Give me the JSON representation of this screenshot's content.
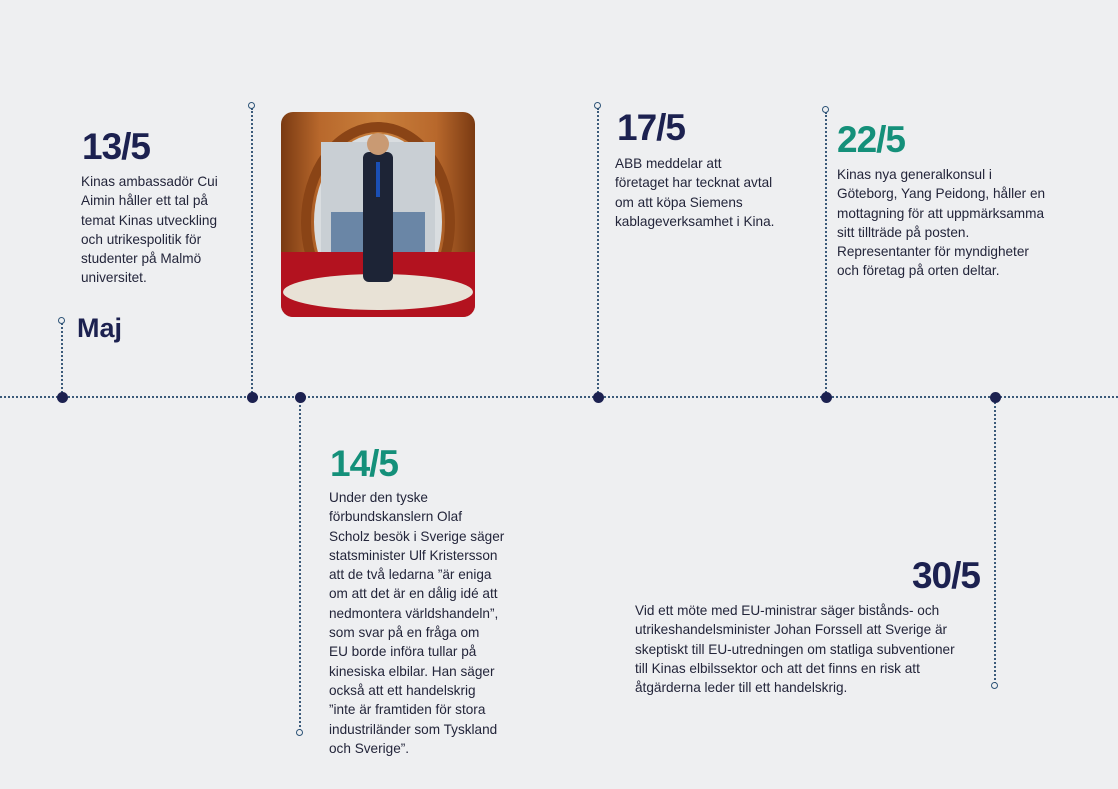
{
  "month": "Maj",
  "events": [
    {
      "date": "13/5",
      "color": "#1c2150",
      "lines": [
        "Kinas ambassadör Cui",
        "Aimin håller ett tal på",
        "temat Kinas utveckling",
        "och utrikespolitik för",
        "studenter på Malmö",
        "universitet."
      ]
    },
    {
      "date": "14/5",
      "color": "#14907a",
      "lines": [
        "Under den tyske",
        "förbundskanslern Olaf",
        "Scholz besök i Sverige säger",
        "statsminister Ulf Kristersson",
        "att de två ledarna ”är eniga",
        "om att det är en dålig idé att",
        "nedmontera världshandeln”,",
        "som svar på en fråga om",
        "EU borde införa tullar på",
        "kinesiska elbilar. Han säger",
        "också att ett handelskrig",
        "”inte är framtiden för stora",
        "industriländer som Tyskland",
        "och Sverige”."
      ]
    },
    {
      "date": "17/5",
      "color": "#1c2150",
      "lines": [
        "ABB meddelar att",
        "företaget har tecknat avtal",
        "om att köpa Siemens",
        "kablageverksamhet i Kina."
      ]
    },
    {
      "date": "22/5",
      "color": "#14907a",
      "lines": [
        "Kinas nya generalkonsul i",
        "Göteborg, Yang Peidong, håller en",
        "mottagning för att uppmärksamma",
        "sitt tillträde på posten.",
        "Representanter för myndigheter",
        "och företag på orten deltar."
      ]
    },
    {
      "date": "30/5",
      "color": "#1c2150",
      "lines": [
        "Vid ett möte med EU-ministrar säger bistånds- och",
        "utrikeshandelsminister Johan Forssell att Sverige är",
        "skeptiskt till EU-utredningen om statliga subventioner",
        "till Kinas elbilssektor och att det finns en risk att",
        "åtgärderna leder till ett handelskrig."
      ]
    }
  ]
}
